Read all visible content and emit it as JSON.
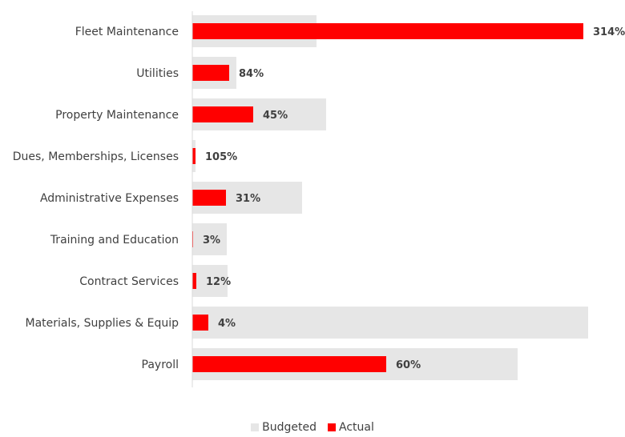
{
  "chart_data": {
    "type": "bar",
    "orientation": "horizontal",
    "categories": [
      "Fleet Maintenance",
      "Utilities",
      "Property Maintenance",
      "Dues, Memberships, Licenses",
      "Administrative Expenses",
      "Training and Education",
      "Contract Services",
      "Materials, Supplies & Equip",
      "Payroll"
    ],
    "series": [
      {
        "name": "Budgeted",
        "color": "#e6e6e6",
        "values": [
          155,
          55,
          167,
          4,
          137,
          43,
          44,
          494,
          406
        ]
      },
      {
        "name": "Actual",
        "color": "#ff0000",
        "values": [
          488,
          46,
          76,
          4,
          42,
          1,
          5,
          20,
          242
        ]
      }
    ],
    "data_labels": [
      "314%",
      "84%",
      "45%",
      "105%",
      "31%",
      "3%",
      "12%",
      "4%",
      "60%"
    ],
    "xlim": [
      0,
      500
    ],
    "grid": false,
    "legend_position": "bottom"
  }
}
